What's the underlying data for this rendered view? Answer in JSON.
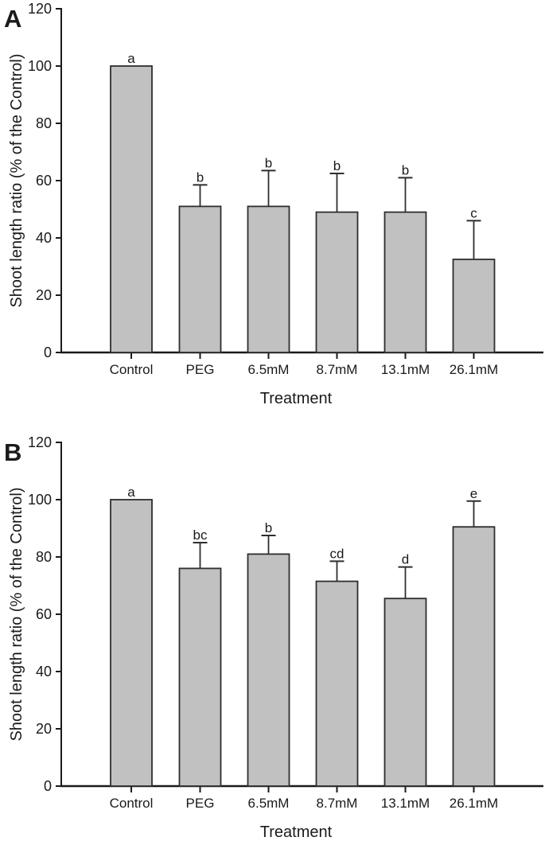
{
  "figure": {
    "background_color": "#ffffff",
    "bar_fill_color": "#c1c1c1",
    "bar_stroke_color": "#2e2e2e",
    "axis_color": "#1a1a1a",
    "text_color": "#1a1a1a"
  },
  "chart_data": [
    {
      "type": "bar",
      "panel_label": "A",
      "xlabel": "Treatment",
      "ylabel": "Shoot length ratio (% of the Control)",
      "ylim": [
        0,
        120
      ],
      "yticks": [
        0,
        20,
        40,
        60,
        80,
        100,
        120
      ],
      "grid": false,
      "legend": null,
      "categories": [
        "Control",
        "PEG",
        "6.5mM",
        "8.7mM",
        "13.1mM",
        "26.1mM"
      ],
      "values": [
        100,
        51,
        51,
        49,
        49,
        32.5
      ],
      "errors_plus": [
        0,
        7.5,
        12.5,
        13.5,
        12,
        13.5
      ],
      "sig_letters": [
        "a",
        "b",
        "b",
        "b",
        "b",
        "c"
      ]
    },
    {
      "type": "bar",
      "panel_label": "B",
      "xlabel": "Treatment",
      "ylabel": "Shoot length ratio (% of the Control)",
      "ylim": [
        0,
        120
      ],
      "yticks": [
        0,
        20,
        40,
        60,
        80,
        100,
        120
      ],
      "grid": false,
      "legend": null,
      "categories": [
        "Control",
        "PEG",
        "6.5mM",
        "8.7mM",
        "13.1mM",
        "26.1mM"
      ],
      "values": [
        100,
        76,
        81,
        71.5,
        65.5,
        90.5
      ],
      "errors_plus": [
        0,
        9,
        6.5,
        7,
        11,
        9
      ],
      "sig_letters": [
        "a",
        "bc",
        "b",
        "cd",
        "d",
        "e"
      ]
    }
  ]
}
